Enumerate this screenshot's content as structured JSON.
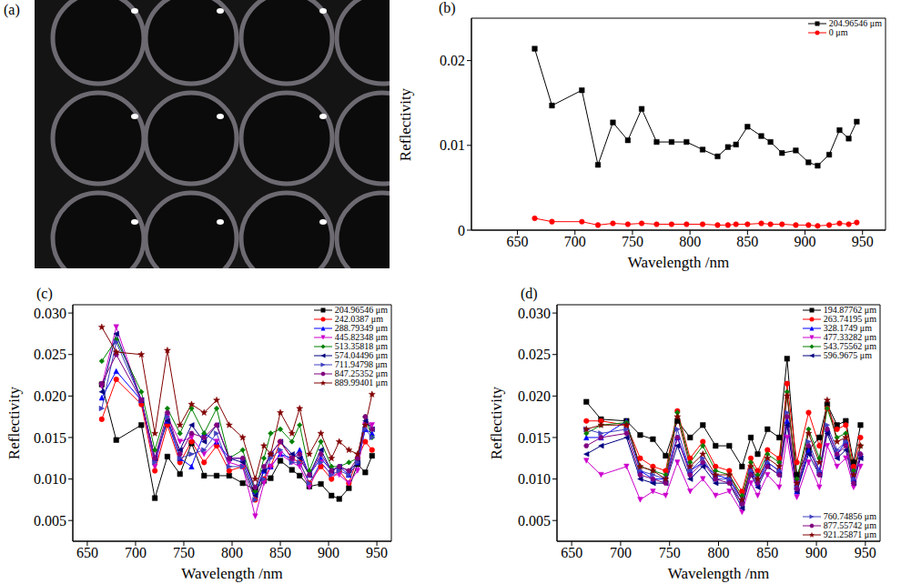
{
  "chart_data": [
    {
      "type": "image",
      "title": "(a)"
    },
    {
      "type": "line",
      "title": "(b)",
      "xlabel": "Wavelength /nm",
      "ylabel": "Reflectivity",
      "x": [
        665,
        680,
        706,
        720,
        733,
        746,
        758,
        771,
        784,
        797,
        811,
        824,
        833,
        840,
        850,
        862,
        870,
        880,
        892,
        903,
        911,
        921,
        930,
        938,
        945
      ],
      "series": [
        {
          "name": "204.96546 μm",
          "color": "#000000",
          "marker": "square",
          "values": [
            0.0214,
            0.0147,
            0.0165,
            0.0077,
            0.0127,
            0.0106,
            0.0143,
            0.0104,
            0.0104,
            0.0104,
            0.0095,
            0.0087,
            0.0098,
            0.0101,
            0.0122,
            0.0111,
            0.0104,
            0.0091,
            0.0094,
            0.008,
            0.0076,
            0.0089,
            0.0118,
            0.0108,
            0.0128
          ]
        },
        {
          "name": "0 μm",
          "color": "#ff0000",
          "marker": "circle",
          "values": [
            0.0014,
            0.001,
            0.001,
            0.0006,
            0.0008,
            0.0007,
            0.0008,
            0.0007,
            0.0007,
            0.0007,
            0.0007,
            0.0006,
            0.0006,
            0.0007,
            0.0007,
            0.0008,
            0.0007,
            0.0007,
            0.0006,
            0.0006,
            0.0005,
            0.0006,
            0.0008,
            0.0007,
            0.0009
          ]
        }
      ],
      "xlim": [
        610,
        970
      ],
      "xticks": [
        650,
        700,
        750,
        800,
        850,
        900,
        950
      ],
      "ylim": [
        0,
        0.025
      ],
      "yticks": [
        0,
        0.01,
        0.02
      ],
      "legend": "upper right"
    },
    {
      "type": "line",
      "title": "(c)",
      "xlabel": "Wavelength /nm",
      "ylabel": "Reflectivity",
      "x": [
        665,
        680,
        706,
        720,
        733,
        746,
        758,
        771,
        784,
        797,
        811,
        824,
        833,
        840,
        850,
        862,
        870,
        880,
        892,
        903,
        911,
        921,
        930,
        938,
        945
      ],
      "series": [
        {
          "name": "204.96546 μm",
          "color": "#000000",
          "marker": "square",
          "values": [
            0.0214,
            0.0147,
            0.0165,
            0.0077,
            0.0127,
            0.0106,
            0.0143,
            0.0104,
            0.0104,
            0.0104,
            0.0095,
            0.0087,
            0.0098,
            0.0101,
            0.0122,
            0.0111,
            0.0104,
            0.0091,
            0.0094,
            0.008,
            0.0076,
            0.0089,
            0.0118,
            0.0108,
            0.0128
          ]
        },
        {
          "name": "242.0387 μm",
          "color": "#ff0000",
          "marker": "circle",
          "values": [
            0.0172,
            0.022,
            0.019,
            0.011,
            0.0165,
            0.012,
            0.0145,
            0.012,
            0.014,
            0.011,
            0.0115,
            0.0075,
            0.01,
            0.0115,
            0.0145,
            0.0125,
            0.012,
            0.0095,
            0.0115,
            0.01,
            0.011,
            0.0095,
            0.0125,
            0.0145,
            0.0135
          ]
        },
        {
          "name": "288.79349 μm",
          "color": "#0000ff",
          "marker": "triangle",
          "values": [
            0.0198,
            0.023,
            0.0195,
            0.0125,
            0.017,
            0.0125,
            0.0115,
            0.0155,
            0.0145,
            0.0125,
            0.0125,
            0.0085,
            0.011,
            0.0115,
            0.013,
            0.0125,
            0.0135,
            0.0105,
            0.0125,
            0.011,
            0.0115,
            0.0105,
            0.012,
            0.016,
            0.0155
          ]
        },
        {
          "name": "445.82348 μm",
          "color": "#cc00cc",
          "marker": "triangle-down",
          "values": [
            0.0212,
            0.0283,
            0.0195,
            0.0115,
            0.0175,
            0.0145,
            0.015,
            0.013,
            0.0145,
            0.012,
            0.0115,
            0.0055,
            0.0095,
            0.0115,
            0.013,
            0.012,
            0.0115,
            0.009,
            0.012,
            0.0105,
            0.0105,
            0.0095,
            0.011,
            0.0165,
            0.0165
          ]
        },
        {
          "name": "513.35818 μm",
          "color": "#008000",
          "marker": "diamond",
          "values": [
            0.0242,
            0.0268,
            0.0205,
            0.0135,
            0.0185,
            0.0155,
            0.0185,
            0.0155,
            0.0185,
            0.0125,
            0.0135,
            0.0085,
            0.0125,
            0.0155,
            0.016,
            0.0145,
            0.0165,
            0.011,
            0.0145,
            0.0115,
            0.0115,
            0.012,
            0.0125,
            0.0175,
            0.015
          ]
        },
        {
          "name": "574.04496 μm",
          "color": "#000080",
          "marker": "triangle-left",
          "values": [
            0.0205,
            0.0275,
            0.0195,
            0.0125,
            0.017,
            0.0135,
            0.0165,
            0.0145,
            0.0165,
            0.0125,
            0.012,
            0.008,
            0.011,
            0.013,
            0.0145,
            0.013,
            0.0125,
            0.0105,
            0.0135,
            0.011,
            0.0115,
            0.011,
            0.012,
            0.017,
            0.016
          ]
        },
        {
          "name": "711.94798 μm",
          "color": "#4040c0",
          "marker": "triangle-right",
          "values": [
            0.0185,
            0.0265,
            0.0195,
            0.012,
            0.0175,
            0.0125,
            0.013,
            0.0135,
            0.0155,
            0.0115,
            0.0115,
            0.0075,
            0.01,
            0.0125,
            0.0135,
            0.012,
            0.012,
            0.0095,
            0.012,
            0.0105,
            0.011,
            0.0105,
            0.012,
            0.016,
            0.015
          ]
        },
        {
          "name": "847.25352 μm",
          "color": "#800080",
          "marker": "hexagon",
          "values": [
            0.0215,
            0.025,
            0.0195,
            0.0125,
            0.018,
            0.013,
            0.0155,
            0.015,
            0.0165,
            0.0125,
            0.0125,
            0.009,
            0.0115,
            0.013,
            0.0145,
            0.0125,
            0.013,
            0.0105,
            0.013,
            0.011,
            0.0115,
            0.011,
            0.0125,
            0.0175,
            0.016
          ]
        },
        {
          "name": "889.99401 μm",
          "color": "#800000",
          "marker": "star",
          "values": [
            0.0283,
            0.0253,
            0.025,
            0.0155,
            0.0255,
            0.0165,
            0.019,
            0.018,
            0.0195,
            0.0165,
            0.015,
            0.01,
            0.014,
            0.013,
            0.018,
            0.0155,
            0.0185,
            0.013,
            0.0155,
            0.0125,
            0.0145,
            0.0135,
            0.013,
            0.0165,
            0.0202
          ]
        }
      ],
      "xlim": [
        635,
        965
      ],
      "xticks": [
        650,
        700,
        750,
        800,
        850,
        900,
        950
      ],
      "ylim": [
        0.0025,
        0.031
      ],
      "yticks": [
        0.005,
        {
          "value": 0.01,
          "label": "0.010"
        },
        0.015,
        {
          "value": 0.02,
          "label": "0.020"
        },
        0.025,
        {
          "value": 0.03,
          "label": "0.030"
        }
      ],
      "legend": "upper right"
    },
    {
      "type": "line",
      "title": "(d)",
      "xlabel": "Wavelength /nm",
      "ylabel": "Reflectivity",
      "x": [
        665,
        680,
        706,
        720,
        733,
        746,
        758,
        771,
        784,
        797,
        811,
        824,
        833,
        840,
        850,
        862,
        870,
        880,
        892,
        903,
        911,
        921,
        930,
        938,
        945
      ],
      "series": [
        {
          "name": "194.87762 μm",
          "color": "#000000",
          "marker": "square",
          "values": [
            0.0193,
            0.0172,
            0.017,
            0.0153,
            0.0148,
            0.0128,
            0.017,
            0.015,
            0.0165,
            0.014,
            0.014,
            0.0115,
            0.015,
            0.013,
            0.016,
            0.015,
            0.0245,
            0.0105,
            0.0135,
            0.015,
            0.019,
            0.0165,
            0.017,
            0.012,
            0.0165
          ]
        },
        {
          "name": "263.74195 μm",
          "color": "#ff0000",
          "marker": "circle",
          "values": [
            0.017,
            0.017,
            0.0165,
            0.0125,
            0.0115,
            0.011,
            0.0182,
            0.0125,
            0.0145,
            0.0115,
            0.011,
            0.0085,
            0.0125,
            0.011,
            0.0135,
            0.0125,
            0.0215,
            0.012,
            0.018,
            0.014,
            0.0185,
            0.016,
            0.0165,
            0.0115,
            0.015
          ]
        },
        {
          "name": "328.1749 μm",
          "color": "#0000ff",
          "marker": "triangle",
          "values": [
            0.015,
            0.015,
            0.017,
            0.011,
            0.01,
            0.01,
            0.015,
            0.011,
            0.012,
            0.0105,
            0.01,
            0.0075,
            0.011,
            0.0095,
            0.012,
            0.011,
            0.017,
            0.0085,
            0.0135,
            0.011,
            0.016,
            0.013,
            0.0145,
            0.01,
            0.013
          ]
        },
        {
          "name": "477.33282 μm",
          "color": "#cc00cc",
          "marker": "triangle-down",
          "values": [
            0.0122,
            0.0105,
            0.0115,
            0.0075,
            0.0085,
            0.008,
            0.012,
            0.0085,
            0.01,
            0.008,
            0.0085,
            0.006,
            0.0095,
            0.008,
            0.0105,
            0.009,
            0.015,
            0.0078,
            0.012,
            0.009,
            0.014,
            0.0115,
            0.0125,
            0.009,
            0.0115
          ]
        },
        {
          "name": "543.75562 μm",
          "color": "#008000",
          "marker": "diamond",
          "values": [
            0.0155,
            0.0165,
            0.0168,
            0.0115,
            0.011,
            0.0105,
            0.018,
            0.012,
            0.014,
            0.011,
            0.0105,
            0.008,
            0.012,
            0.0105,
            0.013,
            0.012,
            0.0205,
            0.01,
            0.016,
            0.0125,
            0.0185,
            0.015,
            0.0155,
            0.011,
            0.014
          ]
        },
        {
          "name": "596.9675 μm",
          "color": "#000080",
          "marker": "triangle-left",
          "values": [
            0.013,
            0.014,
            0.015,
            0.01,
            0.0095,
            0.0095,
            0.014,
            0.01,
            0.0115,
            0.0095,
            0.0095,
            0.0065,
            0.0105,
            0.009,
            0.0115,
            0.0105,
            0.0165,
            0.0085,
            0.013,
            0.0105,
            0.0155,
            0.0125,
            0.0135,
            0.0095,
            0.0125
          ]
        },
        {
          "name": "760.74856 μm",
          "color": "#4040c0",
          "marker": "triangle-right",
          "values": [
            0.016,
            0.0155,
            0.016,
            0.011,
            0.0105,
            0.01,
            0.016,
            0.011,
            0.0125,
            0.01,
            0.01,
            0.007,
            0.011,
            0.01,
            0.012,
            0.011,
            0.018,
            0.009,
            0.0145,
            0.011,
            0.0165,
            0.0135,
            0.0145,
            0.01,
            0.013
          ]
        },
        {
          "name": "877.55742 μm",
          "color": "#800080",
          "marker": "hexagon",
          "values": [
            0.014,
            0.015,
            0.0155,
            0.0105,
            0.01,
            0.0095,
            0.015,
            0.0105,
            0.012,
            0.01,
            0.0095,
            0.007,
            0.0105,
            0.0095,
            0.0115,
            0.0105,
            0.0175,
            0.0088,
            0.014,
            0.0105,
            0.016,
            0.013,
            0.014,
            0.0095,
            0.013
          ]
        },
        {
          "name": "921.25871 μm",
          "color": "#800000",
          "marker": "star",
          "values": [
            0.016,
            0.0165,
            0.0165,
            0.0115,
            0.011,
            0.01,
            0.0175,
            0.0115,
            0.013,
            0.0105,
            0.0105,
            0.0075,
            0.0115,
            0.01,
            0.0125,
            0.0115,
            0.02,
            0.0095,
            0.0155,
            0.012,
            0.0195,
            0.0145,
            0.015,
            0.0105,
            0.014
          ]
        }
      ],
      "xlim": [
        635,
        965
      ],
      "xticks": [
        650,
        700,
        750,
        800,
        850,
        900,
        950
      ],
      "ylim": [
        0.0025,
        0.031
      ],
      "yticks": [
        0.005,
        {
          "value": 0.01,
          "label": "0.010"
        },
        0.015,
        {
          "value": 0.02,
          "label": "0.020"
        },
        0.025,
        {
          "value": 0.03,
          "label": "0.030"
        }
      ],
      "legend": "right"
    }
  ]
}
